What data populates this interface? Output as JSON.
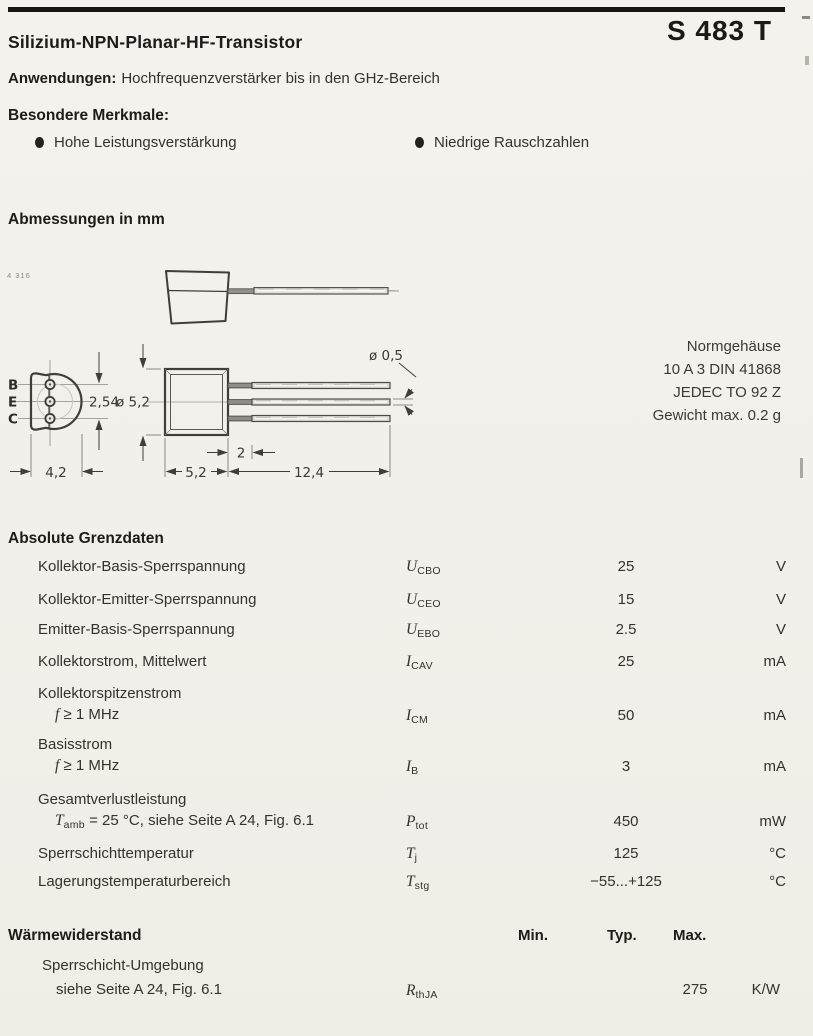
{
  "header": {
    "title": "Silizium-NPN-Planar-HF-Transistor",
    "part_number": "S 483 T"
  },
  "applications": {
    "label": "Anwendungen:",
    "text": "Hochfrequenzverstärker bis in den GHz-Bereich"
  },
  "features": {
    "heading": "Besondere Merkmale:",
    "items": [
      "Hohe Leistungsverstärkung",
      "Niedrige Rauschzahlen"
    ]
  },
  "dimensions": {
    "heading": "Abmessungen in mm",
    "form_number": "4 316",
    "pins": [
      "B",
      "E",
      "C"
    ],
    "labels": {
      "pitch": "2,54",
      "flat_width": "4,2",
      "body_dia": "ø 5,2",
      "body_len": "5,2",
      "lead_thick_len": "2",
      "lead_len": "12,4",
      "lead_dia": "ø 0,5"
    },
    "package_info": [
      "Normgehäuse",
      "10 A 3 DIN 41868",
      "JEDEC TO 92 Z",
      "Gewicht max. 0.2 g"
    ]
  },
  "ratings": {
    "heading": "Absolute Grenzdaten",
    "rows": [
      {
        "param": "Kollektor-Basis-Sperrspannung",
        "sym": "U",
        "sub": "CBO",
        "value": "25",
        "unit": "V"
      },
      {
        "param": "Kollektor-Emitter-Sperrspannung",
        "sym": "U",
        "sub": "CEO",
        "value": "15",
        "unit": "V"
      },
      {
        "param": "Emitter-Basis-Sperrspannung",
        "sym": "U",
        "sub": "EBO",
        "value": "2.5",
        "unit": "V"
      },
      {
        "param": "Kollektorstrom, Mittelwert",
        "sym": "I",
        "sub": "CAV",
        "value": "25",
        "unit": "mA"
      },
      {
        "param": "Kollektorspitzenstrom",
        "cond_sym": "f",
        "cond_rest": " ≥ 1 MHz",
        "sym": "I",
        "sub": "CM",
        "value": "50",
        "unit": "mA"
      },
      {
        "param": "Basisstrom",
        "cond_sym": "f",
        "cond_rest": " ≥ 1 MHz",
        "sym": "I",
        "sub": "B",
        "value": "3",
        "unit": "mA"
      },
      {
        "param": "Gesamtverlustleistung",
        "cond_sym": "T",
        "cond_sub": "amb",
        "cond_rest": " = 25 °C, siehe Seite A 24, Fig. 6.1",
        "sym": "P",
        "sub": "tot",
        "value": "450",
        "unit": "mW"
      },
      {
        "param": "Sperrschichttemperatur",
        "sym": "T",
        "sub": "j",
        "value": "125",
        "unit": "°C"
      },
      {
        "param": "Lagerungstemperaturbereich",
        "sym": "T",
        "sub": "stg",
        "value": "−55...+125",
        "unit": "°C"
      }
    ]
  },
  "thermal": {
    "heading": "Wärmewiderstand",
    "col_min": "Min.",
    "col_typ": "Typ.",
    "col_max": "Max.",
    "row": {
      "param": "Sperrschicht-Umgebung",
      "cond": "siehe Seite A 24, Fig. 6.1",
      "sym": "R",
      "sub": "thJA",
      "max": "275",
      "unit": "K/W"
    }
  }
}
